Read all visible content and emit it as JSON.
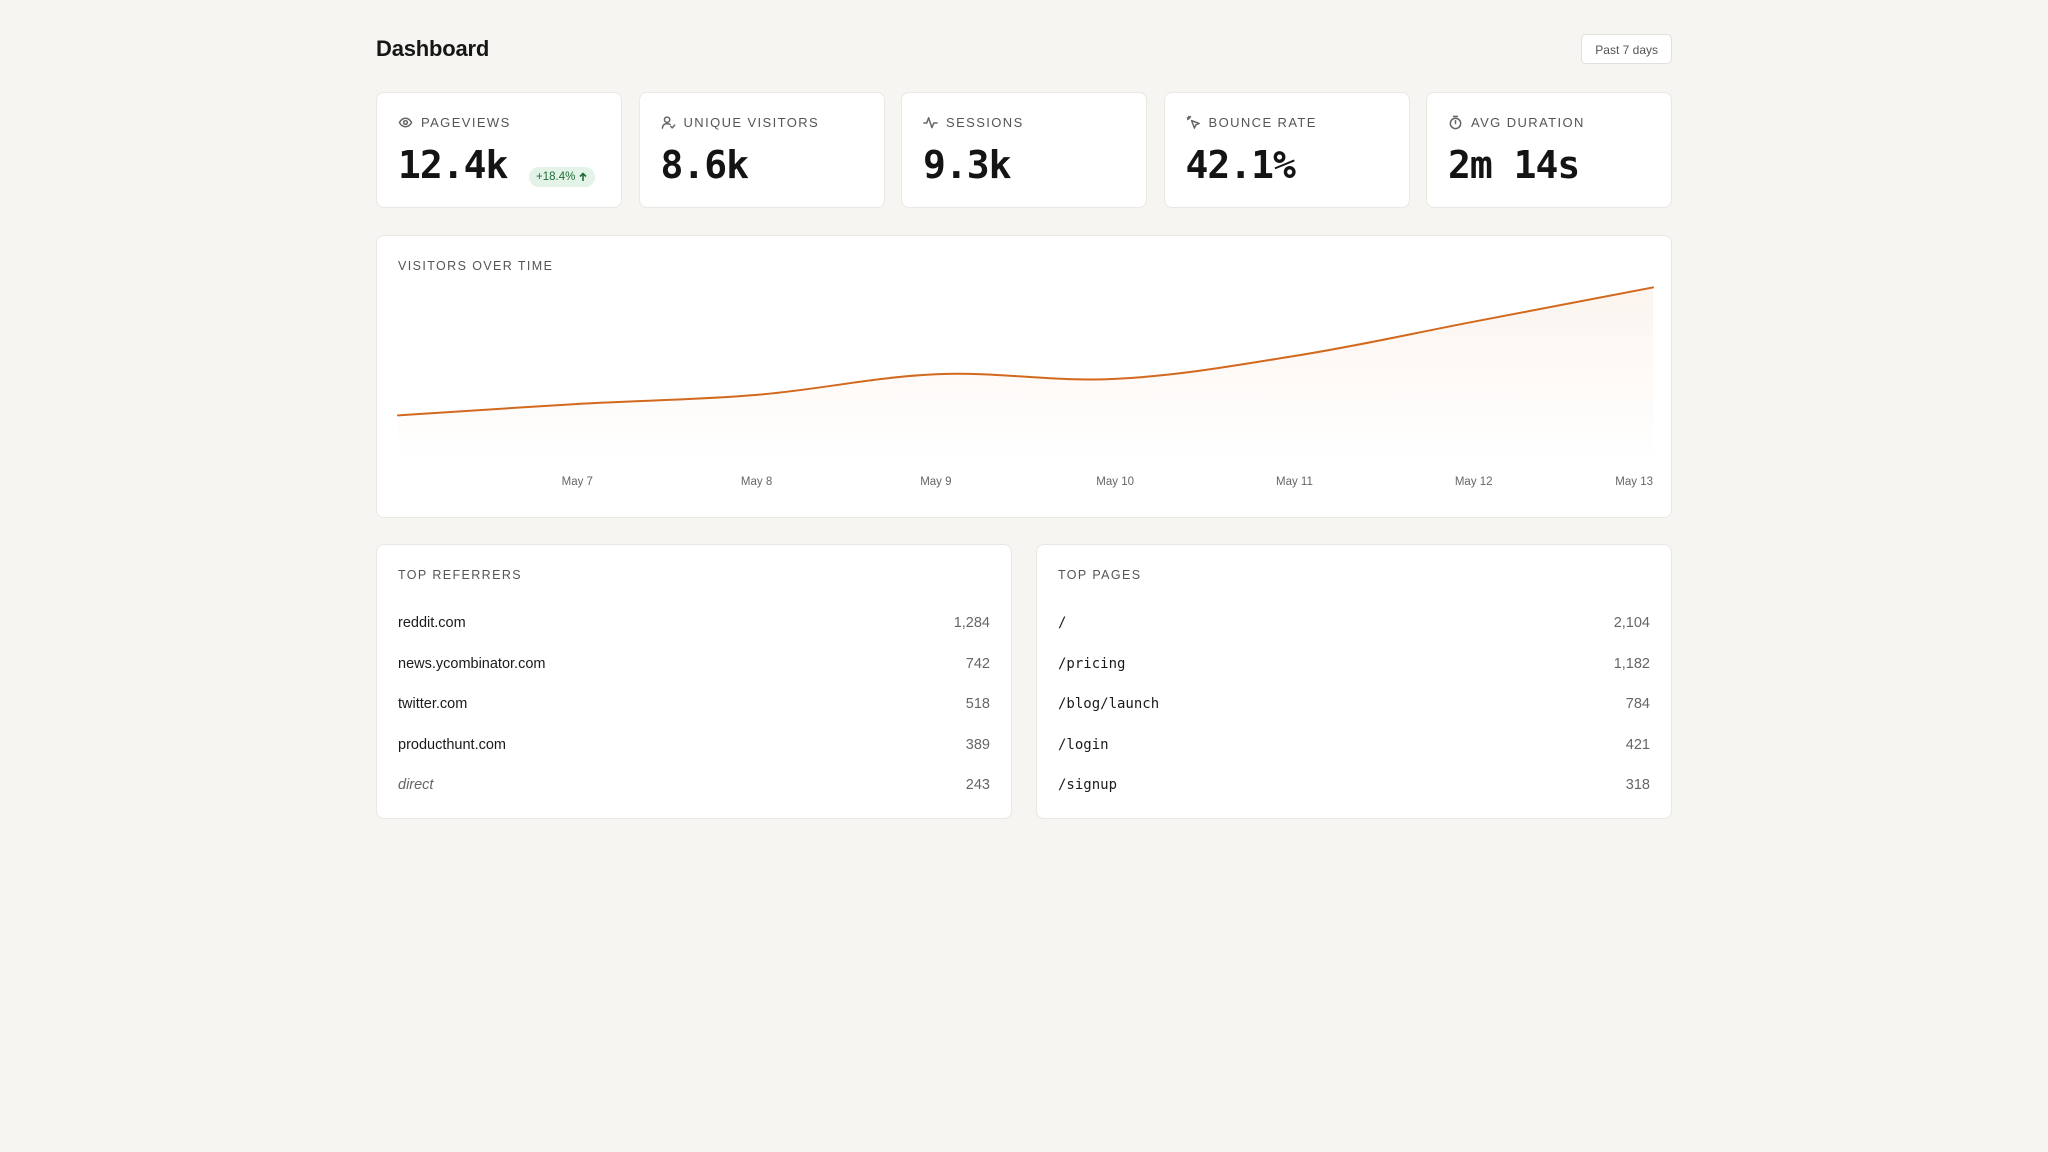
{
  "header": {
    "title": "Dashboard",
    "range_label": "Past 7 days"
  },
  "stats": [
    {
      "label": "PAGEVIEWS",
      "value": "12.4k",
      "icon": "eye-icon",
      "badge": "+18.4%"
    },
    {
      "label": "UNIQUE VISITORS",
      "value": "8.6k",
      "icon": "user-icon"
    },
    {
      "label": "SESSIONS",
      "value": "9.3k",
      "icon": "activity-icon"
    },
    {
      "label": "BOUNCE RATE",
      "value": "42.1%",
      "icon": "pointer-icon"
    },
    {
      "label": "AVG DURATION",
      "value": "2m 14s",
      "icon": "stopwatch-icon"
    }
  ],
  "chart": {
    "title": "VISITORS OVER TIME",
    "line_color": "#d2691e"
  },
  "chart_data": {
    "type": "area",
    "title": "VISITORS OVER TIME",
    "categories": [
      "May 7",
      "May 8",
      "May 9",
      "May 10",
      "May 11",
      "May 12",
      "May 13"
    ],
    "series": [
      {
        "values": [
          980,
          1060,
          1240,
          1200,
          1400,
          1700,
          2000
        ]
      }
    ],
    "first_value": 880,
    "ylim": [
      700,
      2100
    ],
    "grid": false,
    "legend": "none"
  },
  "referrers": {
    "title": "TOP REFERRERS",
    "rows": [
      {
        "name": "reddit.com",
        "value": "1,284"
      },
      {
        "name": "news.ycombinator.com",
        "value": "742"
      },
      {
        "name": "twitter.com",
        "value": "518"
      },
      {
        "name": "producthunt.com",
        "value": "389"
      },
      {
        "name": "direct",
        "value": "243"
      }
    ]
  },
  "pages": {
    "title": "TOP PAGES",
    "rows": [
      {
        "name": "/",
        "value": "2,104"
      },
      {
        "name": "/pricing",
        "value": "1,182"
      },
      {
        "name": "/blog/launch",
        "value": "784"
      },
      {
        "name": "/login",
        "value": "421"
      },
      {
        "name": "/signup",
        "value": "318"
      }
    ]
  },
  "colors": {
    "background": "#f7f5f2",
    "accent": "#d2691e",
    "badge_bg": "#e4f3e8",
    "badge_text": "#1f6b35"
  }
}
